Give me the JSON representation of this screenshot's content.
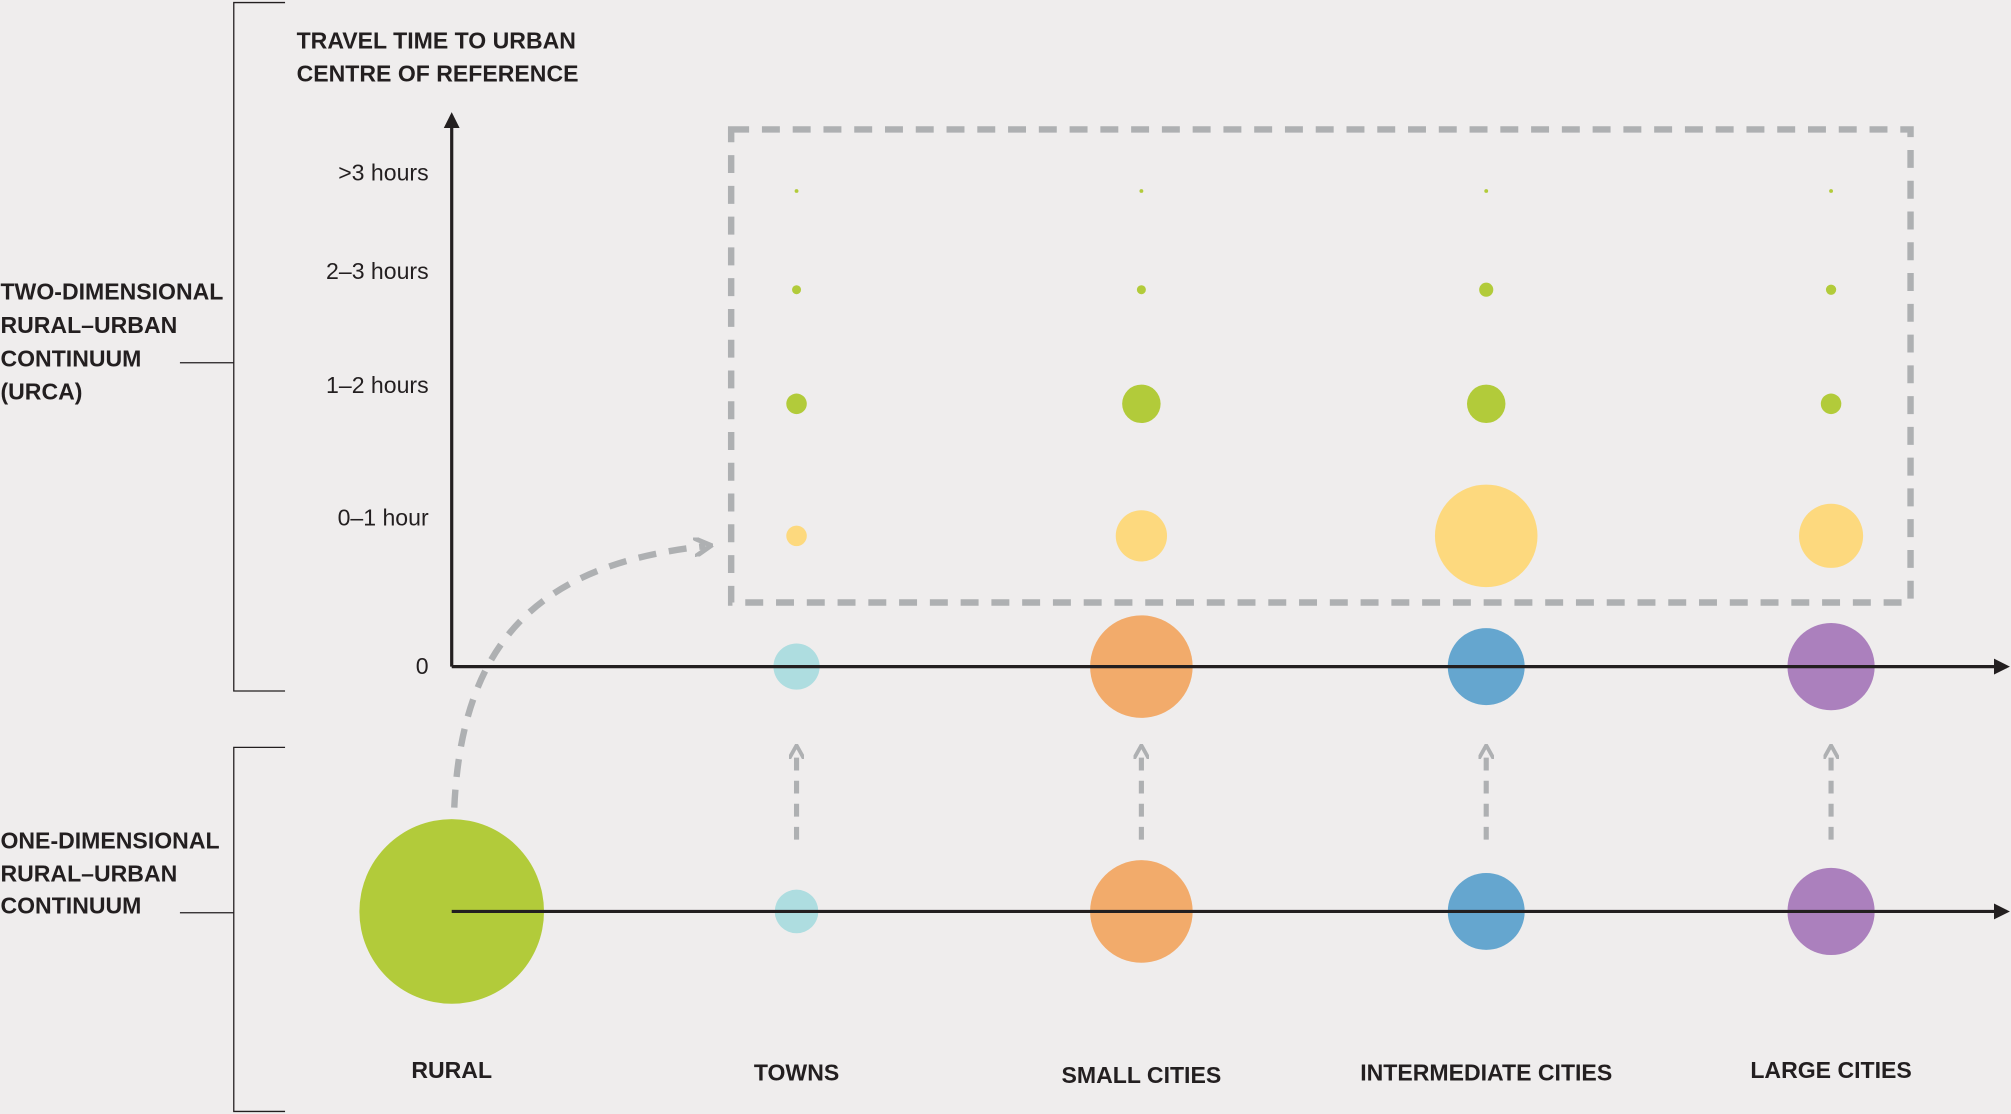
{
  "y_axis_title": [
    "TRAVEL TIME TO URBAN",
    "CENTRE OF REFERENCE"
  ],
  "levels": [
    ">3 hours",
    "2–3 hours",
    "1–2 hours",
    "0–1 hour",
    "0"
  ],
  "two_dimensional_label": [
    "TWO-DIMENSIONAL",
    "RURAL–URBAN",
    "CONTINUUM",
    "(URCA)"
  ],
  "one_dimensional_label": [
    "ONE-DIMENSIONAL",
    "RURAL–URBAN",
    "CONTINUUM"
  ],
  "categories": [
    "RURAL",
    "TOWNS",
    "SMALL CITIES",
    "INTERMEDIATE CITIES",
    "LARGE CITIES"
  ]
}
